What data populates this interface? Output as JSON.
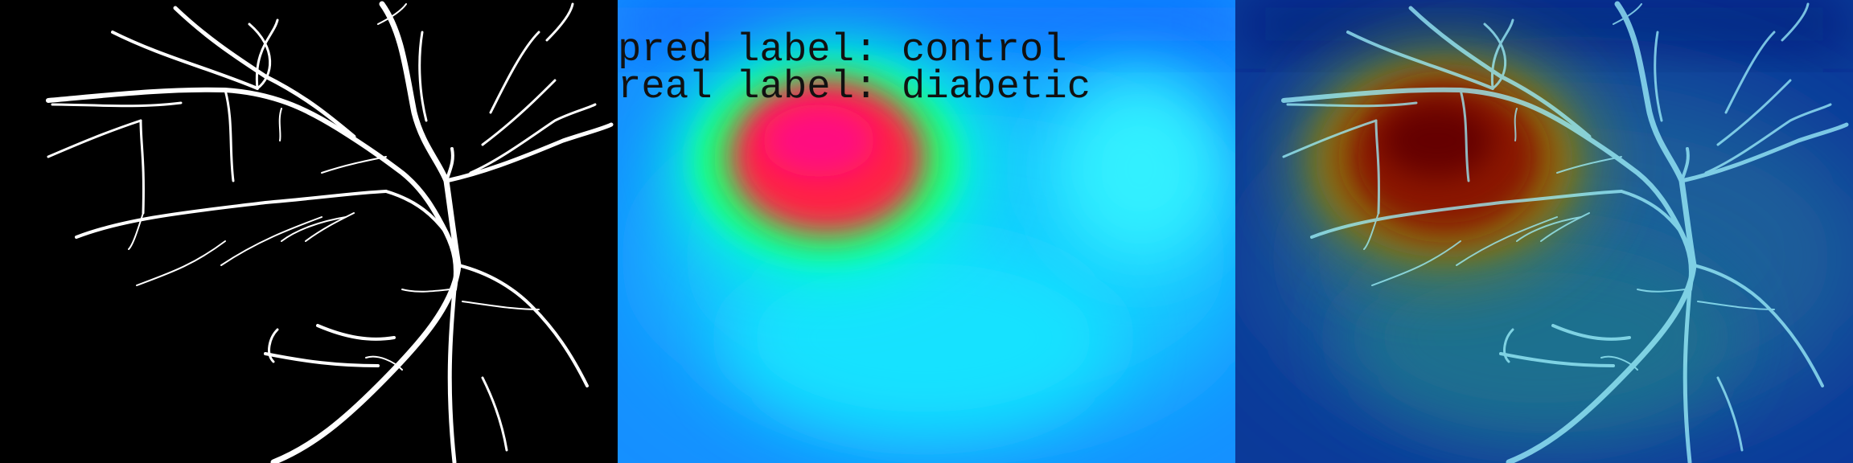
{
  "overlay": {
    "pred_label": "pred label: control",
    "real_label": "real label: diabetic"
  },
  "panels": [
    {
      "name": "vessel-segmentation-mask"
    },
    {
      "name": "attention-heatmap"
    },
    {
      "name": "heatmap-overlay"
    }
  ],
  "colors": {
    "vessel": "#ffffff",
    "heat_low": "#1a8cff",
    "heat_mid": "#00ff66",
    "heat_high": "#ff1f4d",
    "overlay_low": "#062a8a",
    "overlay_high": "#6e0000",
    "overlay_vessel": "#9ff3ff"
  }
}
